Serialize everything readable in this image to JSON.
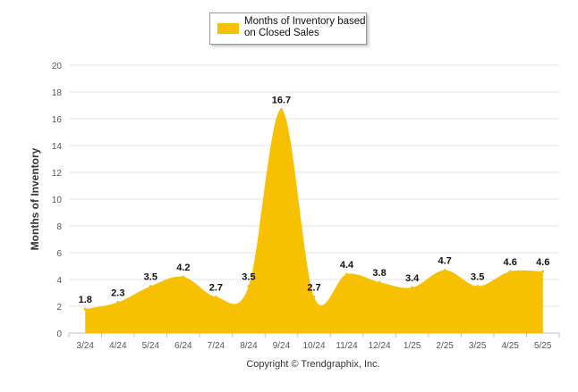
{
  "chart_data": {
    "type": "area",
    "categories": [
      "3/24",
      "4/24",
      "5/24",
      "6/24",
      "7/24",
      "8/24",
      "9/24",
      "10/24",
      "11/24",
      "12/24",
      "1/25",
      "2/25",
      "3/25",
      "4/25",
      "5/25"
    ],
    "series": [
      {
        "name": "Months of Inventory based\non Closed Sales",
        "values": [
          1.8,
          2.3,
          3.5,
          4.2,
          2.7,
          3.5,
          16.7,
          2.7,
          4.4,
          3.8,
          3.4,
          4.7,
          3.5,
          4.6,
          4.6
        ]
      }
    ],
    "data_labels": [
      "1.8",
      "2.3",
      "3.5",
      "4.2",
      "2.7",
      "3.5",
      "16.7",
      "2.7",
      "4.4",
      "3.8",
      "3.4",
      "4.7",
      "3.5",
      "4.6",
      "4.6"
    ],
    "ylabel": "Months of Inventory",
    "xlabel": "",
    "ylim": [
      0,
      20
    ],
    "yticks": [
      "0",
      "2",
      "4",
      "6",
      "8",
      "10",
      "12",
      "14",
      "16",
      "18",
      "20"
    ],
    "grid": true,
    "legend_position": "top-center",
    "colors": {
      "area": "#f7c000",
      "grid": "#e4e4e4",
      "axis": "#c0c0c0",
      "text": "#555555",
      "label": "#111111"
    }
  },
  "footer": {
    "copyright": "Copyright © Trendgraphix, Inc."
  }
}
